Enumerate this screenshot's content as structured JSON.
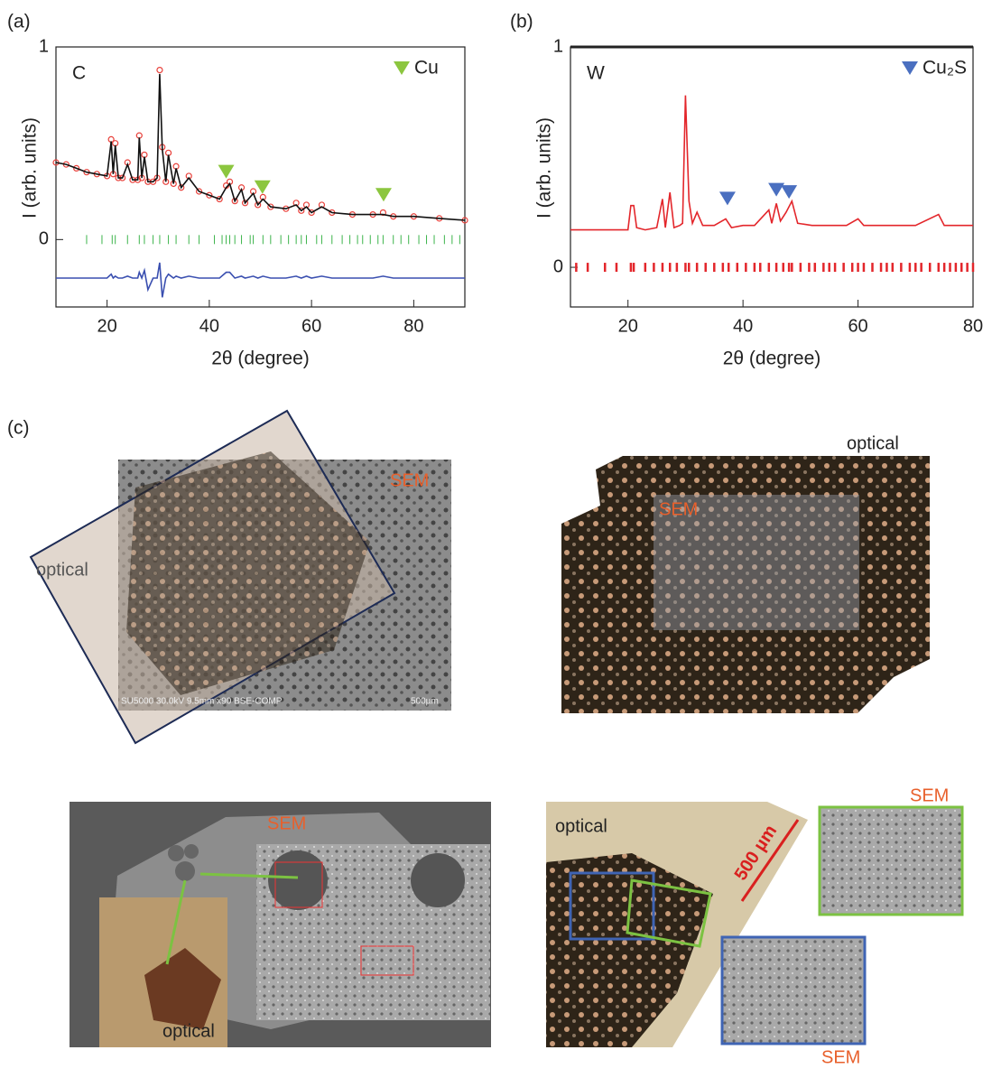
{
  "chart_data": [
    {
      "type": "line",
      "panel_label": "(a)",
      "sample": "C",
      "x_label": "2θ (degree)",
      "y_label": "I (arb. units)",
      "xlim": [
        10,
        90
      ],
      "xticks": [
        20,
        40,
        60,
        80
      ],
      "ylim": [
        -0.35,
        1
      ],
      "yticks": [
        0,
        1
      ],
      "x": [
        10,
        12,
        14,
        16,
        18,
        20,
        20.8,
        21.2,
        21.6,
        22.2,
        23,
        24,
        25,
        26,
        26.3,
        26.8,
        27.3,
        28,
        29,
        29.8,
        30.3,
        30.8,
        31.5,
        32,
        33,
        33.5,
        34.5,
        36,
        38,
        40,
        42,
        43.3,
        44,
        45,
        46.3,
        47,
        48.6,
        49.5,
        50.5,
        52,
        55,
        57,
        58,
        59,
        60,
        62,
        64,
        68,
        72,
        74,
        76,
        80,
        85,
        90
      ],
      "series": [
        {
          "color": "#e8403a",
          "style": "points",
          "values": [
            0.4,
            0.39,
            0.37,
            0.35,
            0.34,
            0.33,
            0.52,
            0.34,
            0.5,
            0.32,
            0.32,
            0.4,
            0.31,
            0.31,
            0.54,
            0.32,
            0.44,
            0.3,
            0.3,
            0.32,
            0.88,
            0.48,
            0.3,
            0.45,
            0.29,
            0.38,
            0.27,
            0.33,
            0.25,
            0.23,
            0.21,
            0.28,
            0.3,
            0.2,
            0.27,
            0.19,
            0.25,
            0.18,
            0.22,
            0.17,
            0.16,
            0.19,
            0.15,
            0.18,
            0.14,
            0.18,
            0.14,
            0.13,
            0.13,
            0.14,
            0.12,
            0.12,
            0.11,
            0.1
          ]
        },
        {
          "color": "#111111",
          "style": "line",
          "values": [
            0.4,
            0.39,
            0.37,
            0.35,
            0.34,
            0.33,
            0.51,
            0.34,
            0.49,
            0.32,
            0.32,
            0.39,
            0.31,
            0.31,
            0.53,
            0.32,
            0.43,
            0.3,
            0.3,
            0.32,
            0.86,
            0.47,
            0.3,
            0.44,
            0.29,
            0.37,
            0.27,
            0.32,
            0.25,
            0.23,
            0.21,
            0.27,
            0.29,
            0.2,
            0.26,
            0.19,
            0.24,
            0.18,
            0.21,
            0.17,
            0.16,
            0.18,
            0.15,
            0.17,
            0.14,
            0.17,
            0.14,
            0.13,
            0.13,
            0.13,
            0.12,
            0.12,
            0.11,
            0.1
          ]
        },
        {
          "color": "#3a4fb0",
          "style": "line",
          "values": [
            -0.2,
            -0.2,
            -0.2,
            -0.2,
            -0.2,
            -0.2,
            -0.18,
            -0.2,
            -0.19,
            -0.2,
            -0.2,
            -0.19,
            -0.2,
            -0.2,
            -0.17,
            -0.2,
            -0.16,
            -0.26,
            -0.2,
            -0.2,
            -0.12,
            -0.3,
            -0.2,
            -0.18,
            -0.2,
            -0.19,
            -0.2,
            -0.19,
            -0.2,
            -0.2,
            -0.2,
            -0.17,
            -0.17,
            -0.2,
            -0.19,
            -0.2,
            -0.19,
            -0.2,
            -0.19,
            -0.2,
            -0.2,
            -0.19,
            -0.2,
            -0.19,
            -0.2,
            -0.19,
            -0.2,
            -0.2,
            -0.2,
            -0.19,
            -0.2,
            -0.2,
            -0.2,
            -0.2
          ]
        }
      ],
      "reflections": {
        "color": "#3cb44b",
        "x": [
          16,
          19,
          21,
          21.6,
          24,
          26.3,
          27.3,
          29,
          30.3,
          32,
          33.5,
          36,
          38,
          41,
          42.5,
          43.3,
          44,
          45,
          46.3,
          48,
          48.6,
          50.5,
          52,
          54,
          55.5,
          57,
          58,
          59,
          61,
          62,
          64,
          66,
          67.5,
          69,
          70,
          71.5,
          73,
          74,
          76,
          77.5,
          79,
          81,
          82.5,
          84,
          86,
          87.5,
          89
        ]
      },
      "markers": {
        "name": "Cu",
        "color": "#8cc63f",
        "x": [
          43.3,
          50.4,
          74.1
        ],
        "y": [
          0.35,
          0.27,
          0.23
        ]
      }
    },
    {
      "type": "line",
      "panel_label": "(b)",
      "sample": "W",
      "x_label": "2θ (degree)",
      "y_label": "I (arb. units)",
      "xlim": [
        10,
        80
      ],
      "xticks": [
        20,
        40,
        60,
        80
      ],
      "ylim": [
        -0.18,
        1
      ],
      "yticks": [
        0,
        1
      ],
      "x": [
        10,
        12,
        14,
        16,
        18,
        20,
        20.5,
        21,
        21.5,
        23,
        25,
        26,
        26.5,
        27.3,
        28,
        29,
        29.5,
        30,
        30.6,
        31.2,
        32,
        33,
        35,
        37,
        38,
        40,
        42,
        44.5,
        45,
        45.8,
        46.5,
        47.5,
        48.5,
        49.5,
        52,
        55,
        58,
        60,
        61,
        65,
        70,
        74,
        75,
        78,
        80
      ],
      "series": [
        {
          "color": "#e3262b",
          "style": "line",
          "values": [
            0.17,
            0.17,
            0.17,
            0.17,
            0.17,
            0.17,
            0.28,
            0.28,
            0.18,
            0.17,
            0.18,
            0.31,
            0.18,
            0.34,
            0.18,
            0.19,
            0.2,
            0.78,
            0.3,
            0.2,
            0.25,
            0.19,
            0.19,
            0.22,
            0.18,
            0.19,
            0.19,
            0.26,
            0.2,
            0.29,
            0.21,
            0.25,
            0.3,
            0.2,
            0.19,
            0.19,
            0.19,
            0.22,
            0.19,
            0.19,
            0.19,
            0.24,
            0.19,
            0.19,
            0.19
          ]
        }
      ],
      "reflections": {
        "color": "#e3262b",
        "x": [
          11,
          13,
          16,
          18,
          20.5,
          21,
          23,
          24.5,
          26,
          27.3,
          28.5,
          30,
          30.6,
          32,
          33.5,
          35,
          36.5,
          37.5,
          39,
          40.5,
          42,
          43,
          44.5,
          45.8,
          47,
          48,
          48.5,
          50,
          51.5,
          52.5,
          54,
          55,
          56,
          57.5,
          59,
          60,
          61,
          62.5,
          64,
          65,
          66,
          67.5,
          69,
          70,
          71,
          72.5,
          74,
          75,
          76,
          77,
          78,
          79,
          80
        ]
      },
      "markers": {
        "name": "Cu₂S",
        "color": "#4a6fc0",
        "x": [
          37.3,
          45.8,
          48
        ],
        "y": [
          0.31,
          0.35,
          0.34
        ]
      }
    }
  ],
  "panel_c": {
    "label": "(c)",
    "image_1": {
      "sem": "SEM",
      "optical": "optical",
      "caption": "SU5000 30.0kV 9.5mm x90 BSE-COMP",
      "scale": "500µm"
    },
    "image_2": {
      "optical": "optical",
      "sem": "SEM"
    },
    "image_3": {
      "sem": "SEM",
      "optical": "optical"
    },
    "image_4": {
      "optical": "optical",
      "scale": "500 µm",
      "sem_top": "SEM",
      "sem_bottom": "SEM"
    }
  }
}
